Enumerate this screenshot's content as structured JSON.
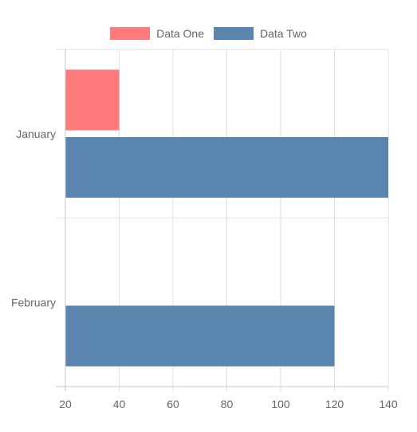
{
  "chart_data": {
    "type": "bar",
    "orientation": "horizontal",
    "categories": [
      "January",
      "February"
    ],
    "series": [
      {
        "name": "Data One",
        "values": [
          40,
          null
        ],
        "color": "#ff7b7b"
      },
      {
        "name": "Data Two",
        "values": [
          140,
          120
        ],
        "color": "#5985ae"
      }
    ],
    "xlim": [
      20,
      140
    ],
    "x_ticks": [
      20,
      40,
      60,
      80,
      100,
      120,
      140
    ],
    "grid": true,
    "legend_position": "top"
  }
}
